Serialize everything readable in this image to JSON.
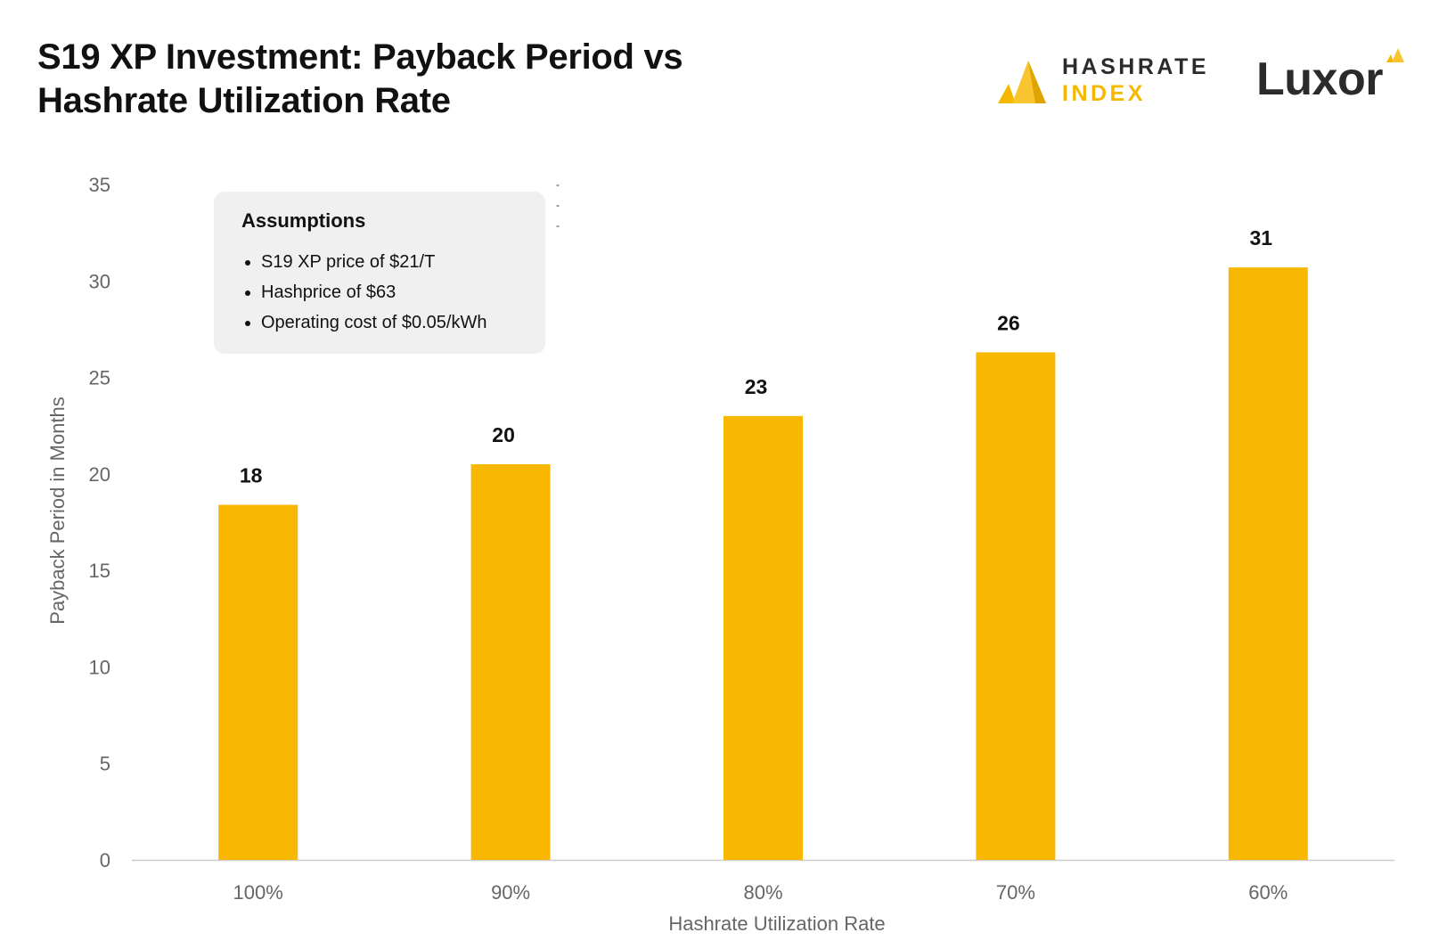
{
  "title_lines": [
    "S19 XP Investment: Payback Period vs",
    "Hashrate Utilization Rate"
  ],
  "logos": {
    "hashrate_index": [
      "HASHRATE",
      "INDEX"
    ],
    "luxor": "Luxor"
  },
  "assumptions": {
    "title": "Assumptions",
    "items": [
      "S19 XP price of $21/T",
      "Hashprice of $63",
      "Operating cost of $0.05/kWh"
    ]
  },
  "colors": {
    "bar": "#f8b700",
    "brand_yellow": "#f5b800",
    "text_dark": "#2b2b2b",
    "axis_text": "#666666"
  },
  "chart_data": {
    "type": "bar",
    "categories": [
      "100%",
      "90%",
      "80%",
      "70%",
      "60%"
    ],
    "values": [
      18.4,
      20.5,
      23.0,
      26.3,
      30.7
    ],
    "data_labels": [
      "18",
      "20",
      "23",
      "26",
      "31"
    ],
    "xlabel": "Hashrate Utilization Rate",
    "ylabel": "Payback Period in Months",
    "ylim": [
      0,
      35
    ],
    "yticks": [
      0,
      5,
      10,
      15,
      20,
      25,
      30,
      35
    ],
    "grid": false,
    "legend": "none"
  }
}
